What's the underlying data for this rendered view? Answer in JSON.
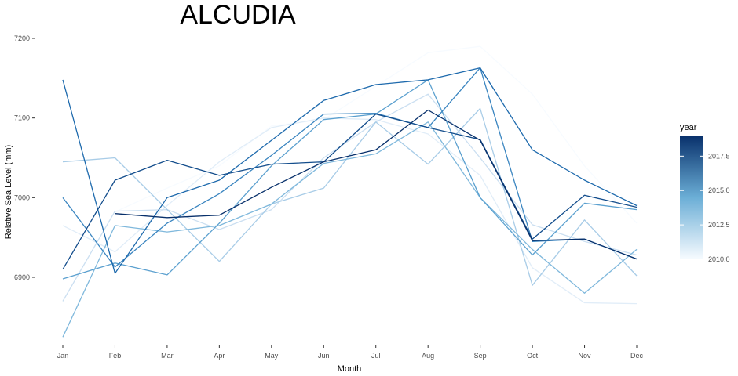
{
  "chart_data": {
    "type": "line",
    "title": "ALCUDIA",
    "xlabel": "Month",
    "ylabel": "Relative Sea Level (mm)",
    "categories": [
      "Jan",
      "Feb",
      "Mar",
      "Apr",
      "May",
      "Jun",
      "Jul",
      "Aug",
      "Sep",
      "Oct",
      "Nov",
      "Dec"
    ],
    "yticks": [
      6900,
      7000,
      7100,
      7200
    ],
    "ylim": [
      6810,
      7200
    ],
    "grid": false,
    "legend": {
      "title": "year",
      "placement": "right",
      "type": "colorbar",
      "min": 2010,
      "max": 2019,
      "breaks": [
        2010.0,
        2012.5,
        2015.0,
        2017.5
      ],
      "break_labels": [
        "2010.0",
        "2012.5",
        "2015.0",
        "2017.5"
      ],
      "color_low": "#f7fbff",
      "color_high": "#08306b"
    },
    "series": [
      {
        "year": 2010,
        "values": [
          null,
          6982,
          7012,
          7040,
          7090,
          7098,
          7140,
          7182,
          7190,
          7130,
          7040,
          6968
        ]
      },
      {
        "year": 2011,
        "values": [
          6965,
          6932,
          6990,
          7045,
          7088,
          7100,
          7098,
          7080,
          7028,
          6912,
          6868,
          6867
        ]
      },
      {
        "year": 2012,
        "values": [
          6870,
          6983,
          6985,
          6960,
          6985,
          7050,
          7095,
          7130,
          7050,
          6966,
          6945,
          6928
        ]
      },
      {
        "year": 2013,
        "values": [
          7045,
          7050,
          6985,
          6920,
          6992,
          7012,
          7095,
          7042,
          7112,
          6890,
          6972,
          6902
        ]
      },
      {
        "year": 2014,
        "values": [
          6825,
          6965,
          6957,
          6965,
          6992,
          7043,
          7055,
          7095,
          7000,
          6935,
          6880,
          6935
        ]
      },
      {
        "year": 2015,
        "values": [
          6898,
          6918,
          6903,
          6968,
          7040,
          7098,
          7105,
          7148,
          7000,
          6928,
          6993,
          6985
        ]
      },
      {
        "year": 2016,
        "values": [
          7000,
          6913,
          6968,
          7005,
          7053,
          7105,
          7106,
          7088,
          7163,
          6945,
          6948,
          6923
        ]
      },
      {
        "year": 2017,
        "values": [
          7148,
          6905,
          7000,
          7022,
          7072,
          7122,
          7142,
          7148,
          7163,
          7060,
          7022,
          6990
        ]
      },
      {
        "year": 2018,
        "values": [
          6910,
          7022,
          7047,
          7028,
          7042,
          7045,
          7105,
          7088,
          7073,
          6948,
          7003,
          6988
        ]
      },
      {
        "year": 2019,
        "values": [
          null,
          6980,
          6975,
          6978,
          7013,
          7045,
          7060,
          7110,
          7072,
          6946,
          6948,
          6923
        ]
      }
    ]
  }
}
